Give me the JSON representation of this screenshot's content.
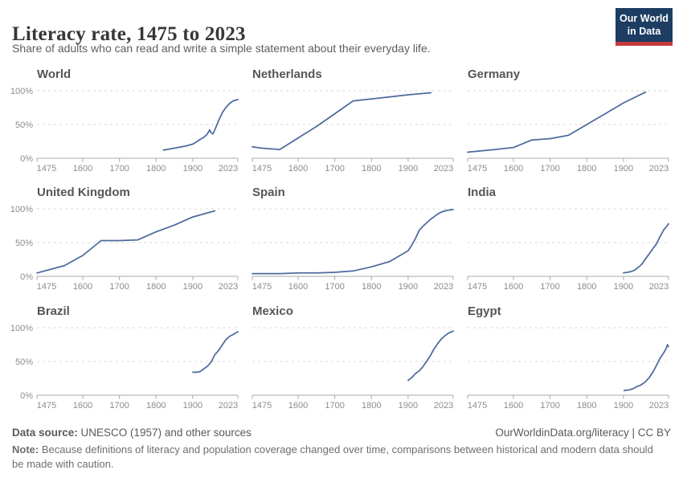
{
  "header": {
    "title": "Literacy rate, 1475 to 2023",
    "subtitle": "Share of adults who can read and write a simple statement about their everyday life.",
    "logo": {
      "line1": "Our World",
      "line2": "in Data"
    }
  },
  "footer": {
    "source_label": "Data source:",
    "source_text": " UNESCO (1957) and other sources",
    "attribution": "OurWorldinData.org/literacy | CC BY",
    "note_label": "Note:",
    "note_text": " Because definitions of literacy and population coverage changed over time, comparisons between historical and modern data should be made with caution."
  },
  "colors": {
    "line": "#4c6a9c",
    "grid": "#d9d9d9",
    "axis": "#a8a8a8",
    "tick_label": "#8c8c8c",
    "logo_navy": "#1d3d63",
    "logo_red": "#c4393b"
  },
  "chart_data": {
    "type": "line",
    "title": "Literacy rate, 1475 to 2023",
    "subtitle": "Share of adults who can read and write a simple statement about their everyday life.",
    "unit": "%",
    "x_domain": [
      1475,
      2023
    ],
    "y_domain": [
      0,
      100
    ],
    "x_ticks": [
      1475,
      1600,
      1700,
      1800,
      1900,
      2023
    ],
    "x_tick_labels": [
      "1475",
      "1600",
      "1700",
      "1800",
      "1900",
      "2023"
    ],
    "y_tick_labels": [
      "0%",
      "50%",
      "100%"
    ],
    "grid": "horizontal dashed lines at 50% and 100%",
    "legend": "none (small multiples, one facet per entity)",
    "facets": [
      {
        "name": "World",
        "points": [
          [
            1820,
            12
          ],
          [
            1850,
            15
          ],
          [
            1880,
            18
          ],
          [
            1900,
            21
          ],
          [
            1910,
            24
          ],
          [
            1920,
            28
          ],
          [
            1930,
            31
          ],
          [
            1940,
            36
          ],
          [
            1946,
            42
          ],
          [
            1950,
            38
          ],
          [
            1955,
            36
          ],
          [
            1960,
            42
          ],
          [
            1970,
            55
          ],
          [
            1980,
            67
          ],
          [
            1990,
            75
          ],
          [
            2000,
            81
          ],
          [
            2010,
            85
          ],
          [
            2023,
            87
          ]
        ]
      },
      {
        "name": "Netherlands",
        "points": [
          [
            1475,
            17
          ],
          [
            1500,
            15
          ],
          [
            1550,
            13
          ],
          [
            1600,
            30
          ],
          [
            1650,
            47
          ],
          [
            1700,
            66
          ],
          [
            1750,
            85
          ],
          [
            1800,
            88
          ],
          [
            1850,
            91
          ],
          [
            1900,
            94
          ],
          [
            1962,
            97
          ]
        ]
      },
      {
        "name": "Germany",
        "points": [
          [
            1475,
            9
          ],
          [
            1550,
            13
          ],
          [
            1600,
            16
          ],
          [
            1650,
            27
          ],
          [
            1700,
            29
          ],
          [
            1750,
            34
          ],
          [
            1800,
            50
          ],
          [
            1850,
            66
          ],
          [
            1900,
            82
          ],
          [
            1960,
            98
          ]
        ]
      },
      {
        "name": "United Kingdom",
        "points": [
          [
            1475,
            5
          ],
          [
            1550,
            16
          ],
          [
            1600,
            31
          ],
          [
            1650,
            53
          ],
          [
            1700,
            53
          ],
          [
            1750,
            54
          ],
          [
            1800,
            66
          ],
          [
            1850,
            76
          ],
          [
            1900,
            88
          ],
          [
            1960,
            97
          ]
        ]
      },
      {
        "name": "Spain",
        "points": [
          [
            1475,
            4
          ],
          [
            1550,
            4
          ],
          [
            1600,
            5
          ],
          [
            1650,
            5
          ],
          [
            1700,
            6
          ],
          [
            1750,
            8
          ],
          [
            1800,
            14
          ],
          [
            1850,
            22
          ],
          [
            1900,
            38
          ],
          [
            1910,
            46
          ],
          [
            1920,
            56
          ],
          [
            1930,
            68
          ],
          [
            1940,
            74
          ],
          [
            1950,
            79
          ],
          [
            1960,
            84
          ],
          [
            1970,
            88
          ],
          [
            1980,
            92
          ],
          [
            1990,
            95
          ],
          [
            2000,
            97
          ],
          [
            2010,
            98
          ],
          [
            2023,
            99
          ]
        ]
      },
      {
        "name": "India",
        "points": [
          [
            1900,
            5
          ],
          [
            1910,
            6
          ],
          [
            1920,
            7
          ],
          [
            1930,
            9
          ],
          [
            1940,
            13
          ],
          [
            1950,
            18
          ],
          [
            1960,
            26
          ],
          [
            1970,
            33
          ],
          [
            1980,
            41
          ],
          [
            1990,
            48
          ],
          [
            2000,
            59
          ],
          [
            2010,
            69
          ],
          [
            2018,
            74
          ],
          [
            2023,
            78
          ]
        ]
      },
      {
        "name": "Brazil",
        "points": [
          [
            1900,
            34
          ],
          [
            1910,
            34
          ],
          [
            1920,
            35
          ],
          [
            1930,
            39
          ],
          [
            1940,
            43
          ],
          [
            1950,
            49
          ],
          [
            1960,
            60
          ],
          [
            1970,
            66
          ],
          [
            1980,
            74
          ],
          [
            1990,
            82
          ],
          [
            2000,
            87
          ],
          [
            2010,
            90
          ],
          [
            2023,
            94
          ]
        ]
      },
      {
        "name": "Mexico",
        "points": [
          [
            1900,
            22
          ],
          [
            1910,
            26
          ],
          [
            1920,
            32
          ],
          [
            1930,
            36
          ],
          [
            1940,
            42
          ],
          [
            1950,
            50
          ],
          [
            1960,
            58
          ],
          [
            1970,
            68
          ],
          [
            1980,
            76
          ],
          [
            1990,
            83
          ],
          [
            2000,
            88
          ],
          [
            2010,
            92
          ],
          [
            2023,
            95
          ]
        ]
      },
      {
        "name": "Egypt",
        "points": [
          [
            1902,
            7
          ],
          [
            1917,
            8
          ],
          [
            1927,
            10
          ],
          [
            1937,
            13
          ],
          [
            1947,
            15
          ],
          [
            1960,
            20
          ],
          [
            1970,
            26
          ],
          [
            1980,
            34
          ],
          [
            1990,
            44
          ],
          [
            2000,
            55
          ],
          [
            2010,
            63
          ],
          [
            2017,
            70
          ],
          [
            2020,
            75
          ],
          [
            2023,
            72
          ]
        ]
      }
    ]
  }
}
